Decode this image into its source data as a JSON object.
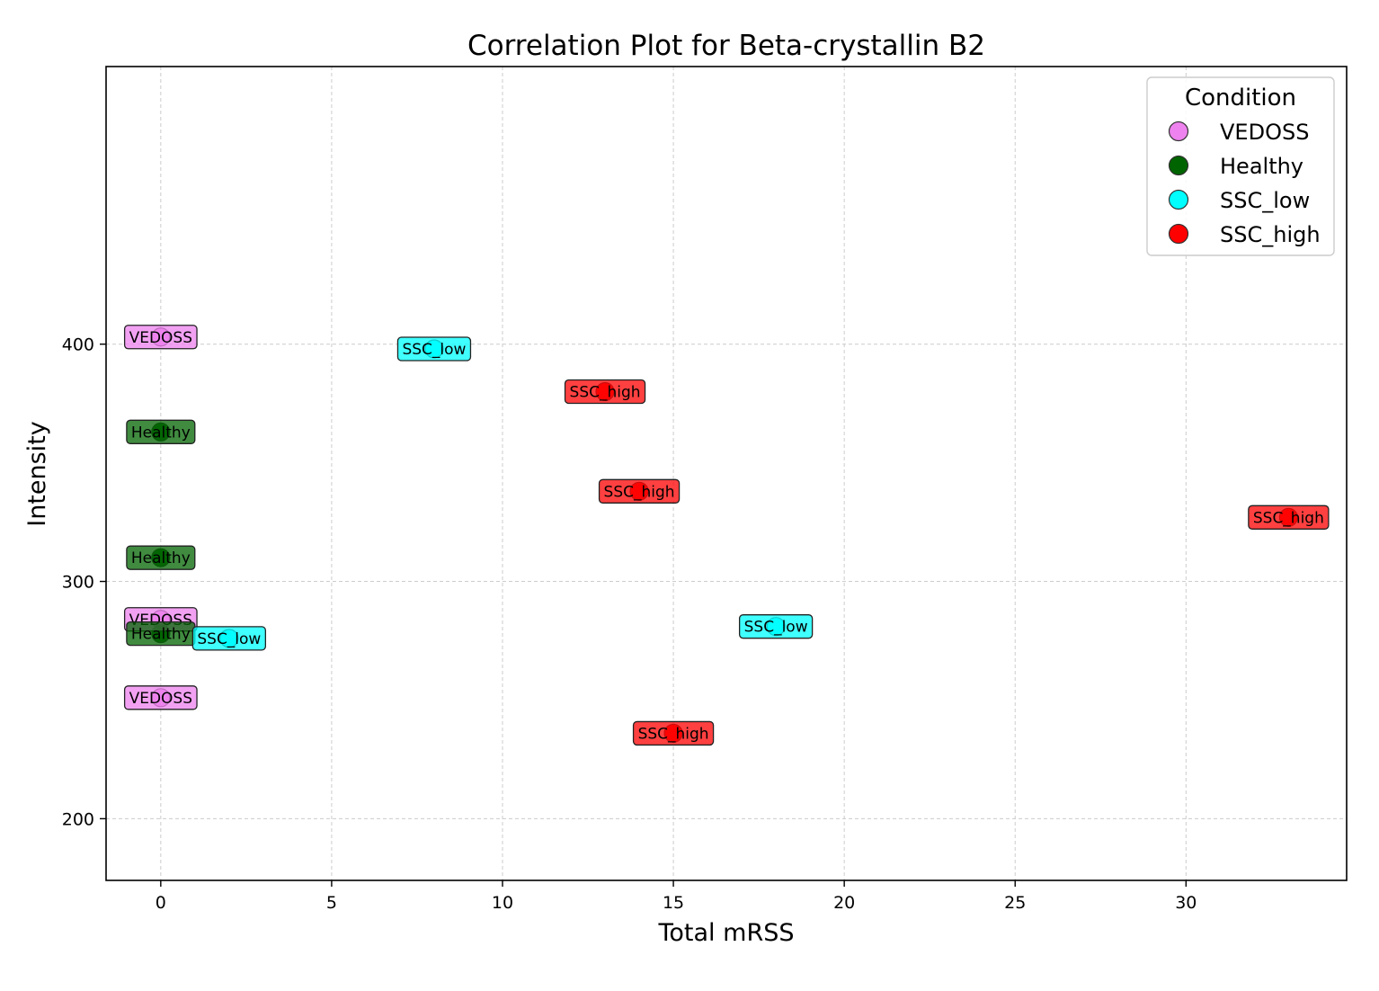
{
  "chart_data": {
    "type": "scatter",
    "title": "Correlation Plot for Beta-crystallin B2",
    "xlabel": "Total mRSS",
    "ylabel": "Intensity",
    "xlim": [
      -1.6,
      34.7
    ],
    "ylim": [
      174,
      517
    ],
    "xticks": [
      0,
      5,
      10,
      15,
      20,
      25,
      30
    ],
    "yticks": [
      200,
      300,
      400
    ],
    "grid": true,
    "legend": {
      "title": "Condition",
      "position": "top-right"
    },
    "series": [
      {
        "name": "VEDOSS",
        "color": "#ee82ee",
        "points": [
          {
            "x": 0,
            "y": 403,
            "label": "VEDOSS"
          },
          {
            "x": 0,
            "y": 284,
            "label": "VEDOSS"
          },
          {
            "x": 0,
            "y": 251,
            "label": "VEDOSS"
          }
        ]
      },
      {
        "name": "Healthy",
        "color": "#006400",
        "points": [
          {
            "x": 0,
            "y": 363,
            "label": "Healthy"
          },
          {
            "x": 0,
            "y": 310,
            "label": "Healthy"
          },
          {
            "x": 0,
            "y": 278,
            "label": "Healthy"
          }
        ]
      },
      {
        "name": "SSC_low",
        "color": "#00ffff",
        "points": [
          {
            "x": 8,
            "y": 398,
            "label": "SSC_low"
          },
          {
            "x": 2,
            "y": 276,
            "label": "SSC_low"
          },
          {
            "x": 18,
            "y": 281,
            "label": "SSC_low"
          }
        ]
      },
      {
        "name": "SSC_high",
        "color": "#ff0000",
        "points": [
          {
            "x": 13,
            "y": 380,
            "label": "SSC_high"
          },
          {
            "x": 14,
            "y": 338,
            "label": "SSC_high"
          },
          {
            "x": 33,
            "y": 327,
            "label": "SSC_high"
          },
          {
            "x": 15,
            "y": 236,
            "label": "SSC_high"
          }
        ]
      }
    ]
  }
}
